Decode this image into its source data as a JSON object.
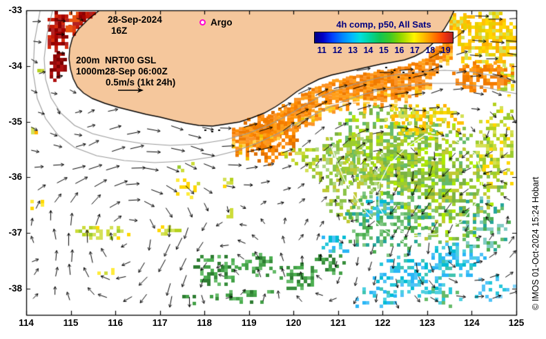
{
  "figure": {
    "land_color": "#f5c79c",
    "ocean_color": "#ffffff",
    "coastline_color": "#000000",
    "vector_color": "#000000",
    "bathymetry_contour_color": "#9a9a9a",
    "gsl_contour_color": "#ffffff"
  },
  "header": {
    "date": "28-Sep-2024",
    "time_utc": "16Z",
    "argo": {
      "label": "Argo",
      "marker_color": "#ff00cc"
    }
  },
  "legend": {
    "contour1_depth": "200m",
    "contour1_label": "NRT00 GSL",
    "contour2_depth": "1000m",
    "contour2_label": "28-Sep 06:00Z",
    "vector_scale": "0.5m/s (1kt 24h)"
  },
  "colorbar": {
    "title": "4h comp, p50, All Sats",
    "text_color": "#000080",
    "tick_labels": [
      "11",
      "12",
      "13",
      "14",
      "15",
      "16",
      "17",
      "18",
      "19"
    ],
    "gradient": [
      [
        0,
        "#000080"
      ],
      [
        0.06,
        "#0000c8"
      ],
      [
        0.13,
        "#0042ff"
      ],
      [
        0.2,
        "#0084ff"
      ],
      [
        0.27,
        "#00b8ff"
      ],
      [
        0.33,
        "#00e0dc"
      ],
      [
        0.4,
        "#00d49c"
      ],
      [
        0.47,
        "#10c655"
      ],
      [
        0.54,
        "#38c928"
      ],
      [
        0.61,
        "#84d400"
      ],
      [
        0.67,
        "#c6e400"
      ],
      [
        0.72,
        "#fef600"
      ],
      [
        0.78,
        "#ffc400"
      ],
      [
        0.84,
        "#ff9000"
      ],
      [
        0.9,
        "#ff5800"
      ],
      [
        0.95,
        "#ea3010"
      ],
      [
        1,
        "#b22222"
      ]
    ]
  },
  "axes": {
    "x_tick_labels": [
      "114",
      "115",
      "116",
      "117",
      "118",
      "119",
      "120",
      "121",
      "122",
      "123",
      "124",
      "125"
    ],
    "y_tick_labels": [
      "-33",
      "-34",
      "-35",
      "-36",
      "-37",
      "-38"
    ]
  },
  "credit": "© IMOS 01-Oct-2024 15:24 Hobart",
  "chart_data": {
    "type": "heatmap",
    "title": "4h comp, p50, All Sats",
    "x_axis": {
      "ticks": [
        114,
        115,
        116,
        117,
        118,
        119,
        120,
        121,
        122,
        123,
        124,
        125
      ]
    },
    "y_axis": {
      "ticks": [
        -33,
        -34,
        -35,
        -36,
        -37,
        -38
      ]
    },
    "colorbar_ticks": [
      11,
      12,
      13,
      14,
      15,
      16,
      17,
      18,
      19
    ],
    "colorbar_range": [
      11,
      19
    ],
    "layers": [
      "sst-pixel-field",
      "surface-current-vectors",
      "coastline-land-mask",
      "bathymetry-contours-200m-1000m",
      "gsl-contours",
      "argo-legend"
    ]
  }
}
